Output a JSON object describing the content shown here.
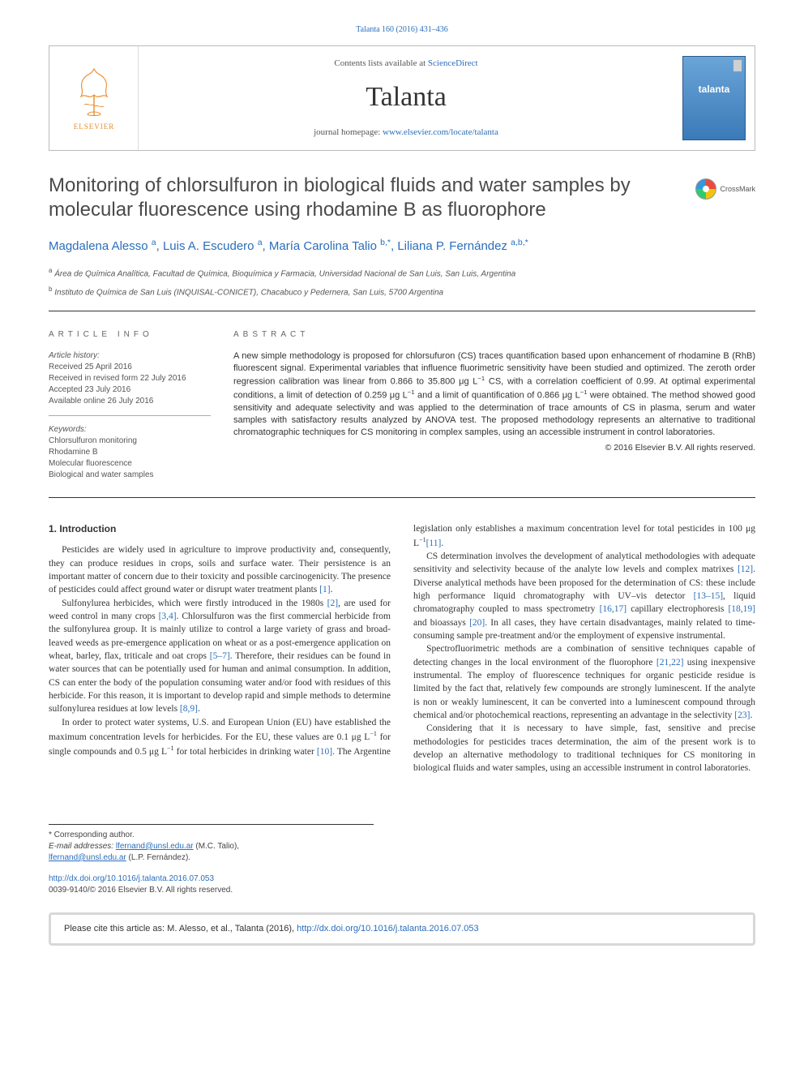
{
  "colors": {
    "link": "#2a6ebb",
    "text": "#333333",
    "muted": "#555555",
    "rule": "#333333",
    "brand_gradient_top": "#6aa5d8",
    "brand_gradient_bottom": "#3b7ab8"
  },
  "top_link": "Talanta 160 (2016) 431–436",
  "masthead": {
    "contents_prefix": "Contents lists available at ",
    "contents_link_text": "ScienceDirect",
    "journal": "Talanta",
    "homepage_prefix": "journal homepage: ",
    "homepage_url": "www.elsevier.com/locate/talanta"
  },
  "crossmark_label": "CrossMark",
  "title": "Monitoring of chlorsulfuron in biological fluids and water samples by molecular fluorescence using rhodamine B as fluorophore",
  "authors_html": "Magdalena Alesso <sup>a</sup>, Luis A. Escudero <sup>a</sup>, María Carolina Talio <sup>b,*</sup>, Liliana P. Fernández <sup>a,b,*</sup>",
  "affiliations": [
    {
      "mark": "a",
      "text": "Área de Química Analítica, Facultad de Química, Bioquímica y Farmacia, Universidad Nacional de San Luis, San Luis, Argentina"
    },
    {
      "mark": "b",
      "text": "Instituto de Química de San Luis (INQUISAL-CONICET), Chacabuco y Pedernera, San Luis, 5700 Argentina"
    }
  ],
  "info_label": "ARTICLE INFO",
  "abstract_label": "ABSTRACT",
  "history": {
    "label": "Article history:",
    "received": "Received 25 April 2016",
    "revised": "Received in revised form 22 July 2016",
    "accepted": "Accepted 23 July 2016",
    "online": "Available online 26 July 2016"
  },
  "keywords": {
    "label": "Keywords:",
    "items": [
      "Chlorsulfuron monitoring",
      "Rhodamine B",
      "Molecular fluorescence",
      "Biological and water samples"
    ]
  },
  "abstract_text": "A new simple methodology is proposed for chlorsufuron (CS) traces quantification based upon enhancement of rhodamine B (RhB) fluorescent signal. Experimental variables that influence fluorimetric sensitivity have been studied and optimized. The zeroth order regression calibration was linear from 0.866 to 35.800 μg L⁻¹ CS, with a correlation coefficient of 0.99. At optimal experimental conditions, a limit of detection of 0.259 μg L⁻¹ and a limit of quantification of 0.866 μg L⁻¹ were obtained. The method showed good sensitivity and adequate selectivity and was applied to the determination of trace amounts of CS in plasma, serum and water samples with satisfactory results analyzed by ANOVA test. The proposed methodology represents an alternative to traditional chromatographic techniques for CS monitoring in complex samples, using an accessible instrument in control laboratories.",
  "copyright": "© 2016 Elsevier B.V. All rights reserved.",
  "section_heading": "1. Introduction",
  "paragraphs": [
    "Pesticides are widely used in agriculture to improve productivity and, consequently, they can produce residues in crops, soils and surface water. Their persistence is an important matter of concern due to their toxicity and possible carcinogenicity. The presence of pesticides could affect ground water or disrupt water treatment plants [1].",
    "Sulfonylurea herbicides, which were firstly introduced in the 1980s [2], are used for weed control in many crops [3,4]. Chlorsulfuron was the first commercial herbicide from the sulfonylurea group. It is mainly utilize to control a large variety of grass and broad-leaved weeds as pre-emergence application on wheat or as a post-emergence application on wheat, barley, flax, triticale and oat crops [5–7]. Therefore, their residues can be found in water sources that can be potentially used for human and animal consumption. In addition, CS can enter the body of the population consuming water and/or food with residues of this herbicide. For this reason, it is important to develop rapid and simple methods to determine sulfonylurea residues at low levels [8,9].",
    "In order to protect water systems, U.S. and European Union (EU) have established the maximum concentration levels for herbicides. For the EU, these values are 0.1 μg L⁻¹ for single compounds and 0.5 μg L⁻¹ for total herbicides in drinking water [10]. The Argentine legislation only establishes a maximum concentration level for total pesticides in 100 μg L⁻¹[11].",
    "CS determination involves the development of analytical methodologies with adequate sensitivity and selectivity because of the analyte low levels and complex matrixes [12]. Diverse analytical methods have been proposed for the determination of CS: these include high performance liquid chromatography with UV–vis detector [13–15], liquid chromatography coupled to mass spectrometry [16,17] capillary electrophoresis [18,19] and bioassays [20]. In all cases, they have certain disadvantages, mainly related to time-consuming sample pre-treatment and/or the employment of expensive instrumental.",
    "Spectrofluorimetric methods are a combination of sensitive techniques capable of detecting changes in the local environment of the fluorophore [21,22] using inexpensive instrumental. The employ of fluorescence techniques for organic pesticide residue is limited by the fact that, relatively few compounds are strongly luminescent. If the analyte is non or weakly luminescent, it can be converted into a luminescent compound through chemical and/or photochemical reactions, representing an advantage in the selectivity [23].",
    "Considering that it is necessary to have simple, fast, sensitive and precise methodologies for pesticides traces determination, the aim of the present work is to develop an alternative methodology to traditional techniques for CS monitoring in biological fluids and water samples, using an accessible instrument in control laboratories."
  ],
  "footnotes": {
    "corresponding": "* Corresponding author.",
    "email_label": "E-mail addresses:",
    "emails": [
      {
        "addr": "lfernand@unsl.edu.ar",
        "who": "(M.C. Talio),"
      },
      {
        "addr": "lfernand@unsl.edu.ar",
        "who": "(L.P. Fernández)."
      }
    ]
  },
  "doi": {
    "url": "http://dx.doi.org/10.1016/j.talanta.2016.07.053",
    "issn_line": "0039-9140/© 2016 Elsevier B.V. All rights reserved."
  },
  "cite_box": {
    "prefix": "Please cite this article as: M. Alesso, et al., Talanta (2016), ",
    "url": "http://dx.doi.org/10.1016/j.talanta.2016.07.053"
  },
  "refs": [
    "[1]",
    "[2]",
    "[3,4]",
    "[5–7]",
    "[8,9]",
    "[10]",
    "[11]",
    "[12]",
    "[13–15]",
    "[16,17]",
    "[18,19]",
    "[20]",
    "[21,22]",
    "[23]"
  ]
}
